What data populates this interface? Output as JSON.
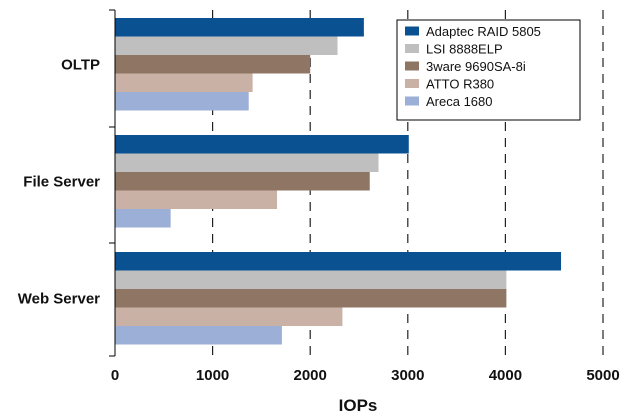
{
  "chart_data": {
    "type": "bar",
    "orientation": "horizontal",
    "title": "",
    "xlabel": "IOPs",
    "ylabel": "",
    "xlim": [
      0,
      5000
    ],
    "xticks": [
      "0",
      "1000",
      "2000",
      "3000",
      "4000",
      "5000"
    ],
    "grid": "vertical dashed",
    "legend_position": "top-right",
    "categories": [
      "OLTP",
      "File Server",
      "Web Server"
    ],
    "series": [
      {
        "name": "Adaptec RAID 5805",
        "color": "#0a5191",
        "values": [
          2550,
          3010,
          4570
        ]
      },
      {
        "name": "LSI 8888ELP",
        "color": "#bfbfbf",
        "values": [
          2280,
          2700,
          4010
        ]
      },
      {
        "name": "3ware 9690SA-8i",
        "color": "#8f7564",
        "values": [
          2000,
          2610,
          4010
        ]
      },
      {
        "name": "ATTO R380",
        "color": "#c9b2a5",
        "values": [
          1410,
          1660,
          2330
        ]
      },
      {
        "name": "Areca 1680",
        "color": "#9cafd6",
        "values": [
          1370,
          570,
          1710
        ]
      }
    ]
  }
}
